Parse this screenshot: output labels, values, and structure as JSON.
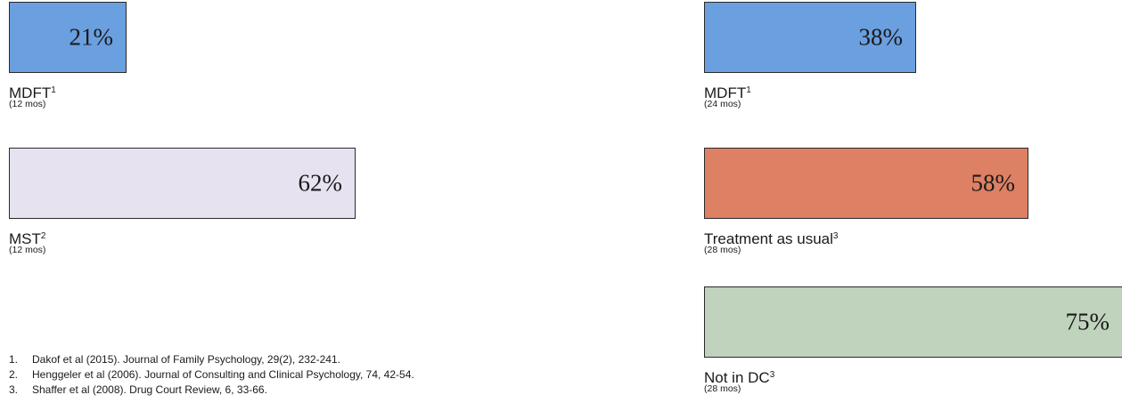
{
  "chart_data": {
    "type": "bar",
    "orientation": "horizontal",
    "unit": "%",
    "bars": [
      {
        "label": "MDFT",
        "superscript": "1",
        "sublabel": "(12 mos)",
        "value": 21,
        "value_label": "21%",
        "color": "#6a9fe0",
        "column": "left"
      },
      {
        "label": "MST",
        "superscript": "2",
        "sublabel": "(12 mos)",
        "value": 62,
        "value_label": "62%",
        "color": "#e6e2f0",
        "column": "left"
      },
      {
        "label": "MDFT",
        "superscript": "1",
        "sublabel": "(24 mos)",
        "value": 38,
        "value_label": "38%",
        "color": "#6a9fe0",
        "column": "right"
      },
      {
        "label": "Treatment as usual",
        "superscript": "3",
        "sublabel": "(28 mos)",
        "value": 58,
        "value_label": "58%",
        "color": "#dd8063",
        "column": "right"
      },
      {
        "label": "Not in DC",
        "superscript": "3",
        "sublabel": "(28 mos)",
        "value": 75,
        "value_label": "75%",
        "color": "#c0d3bc",
        "column": "right"
      }
    ]
  },
  "references": [
    {
      "num": "1.",
      "text": "Dakof et al (2015). Journal of Family Psychology, 29(2), 232-241."
    },
    {
      "num": "2.",
      "text": "Henggeler et al (2006). Journal of Consulting and Clinical Psychology, 74, 42-54."
    },
    {
      "num": "3.",
      "text": "Shaffer et al (2008). Drug Court Review, 6, 33-66."
    }
  ]
}
